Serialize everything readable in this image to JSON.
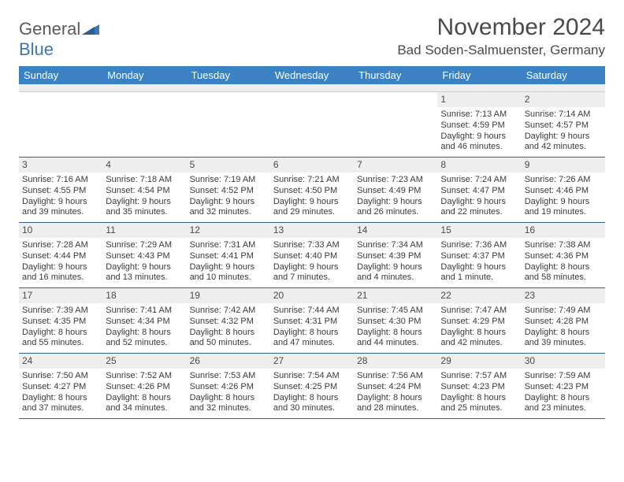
{
  "logo": {
    "general": "General",
    "blue": "Blue"
  },
  "title": "November 2024",
  "location": "Bad Soden-Salmuenster, Germany",
  "colors": {
    "header_bg": "#3a82c4",
    "header_text": "#ffffff",
    "daynum_bg": "#eeeeee",
    "week_divider": "#2f5f8f",
    "logo_blue": "#3a78b5",
    "text": "#3a3a3a"
  },
  "dow": [
    "Sunday",
    "Monday",
    "Tuesday",
    "Wednesday",
    "Thursday",
    "Friday",
    "Saturday"
  ],
  "weeks": [
    [
      null,
      null,
      null,
      null,
      null,
      {
        "n": "1",
        "sr": "Sunrise: 7:13 AM",
        "ss": "Sunset: 4:59 PM",
        "d1": "Daylight: 9 hours",
        "d2": "and 46 minutes."
      },
      {
        "n": "2",
        "sr": "Sunrise: 7:14 AM",
        "ss": "Sunset: 4:57 PM",
        "d1": "Daylight: 9 hours",
        "d2": "and 42 minutes."
      }
    ],
    [
      {
        "n": "3",
        "sr": "Sunrise: 7:16 AM",
        "ss": "Sunset: 4:55 PM",
        "d1": "Daylight: 9 hours",
        "d2": "and 39 minutes."
      },
      {
        "n": "4",
        "sr": "Sunrise: 7:18 AM",
        "ss": "Sunset: 4:54 PM",
        "d1": "Daylight: 9 hours",
        "d2": "and 35 minutes."
      },
      {
        "n": "5",
        "sr": "Sunrise: 7:19 AM",
        "ss": "Sunset: 4:52 PM",
        "d1": "Daylight: 9 hours",
        "d2": "and 32 minutes."
      },
      {
        "n": "6",
        "sr": "Sunrise: 7:21 AM",
        "ss": "Sunset: 4:50 PM",
        "d1": "Daylight: 9 hours",
        "d2": "and 29 minutes."
      },
      {
        "n": "7",
        "sr": "Sunrise: 7:23 AM",
        "ss": "Sunset: 4:49 PM",
        "d1": "Daylight: 9 hours",
        "d2": "and 26 minutes."
      },
      {
        "n": "8",
        "sr": "Sunrise: 7:24 AM",
        "ss": "Sunset: 4:47 PM",
        "d1": "Daylight: 9 hours",
        "d2": "and 22 minutes."
      },
      {
        "n": "9",
        "sr": "Sunrise: 7:26 AM",
        "ss": "Sunset: 4:46 PM",
        "d1": "Daylight: 9 hours",
        "d2": "and 19 minutes."
      }
    ],
    [
      {
        "n": "10",
        "sr": "Sunrise: 7:28 AM",
        "ss": "Sunset: 4:44 PM",
        "d1": "Daylight: 9 hours",
        "d2": "and 16 minutes."
      },
      {
        "n": "11",
        "sr": "Sunrise: 7:29 AM",
        "ss": "Sunset: 4:43 PM",
        "d1": "Daylight: 9 hours",
        "d2": "and 13 minutes."
      },
      {
        "n": "12",
        "sr": "Sunrise: 7:31 AM",
        "ss": "Sunset: 4:41 PM",
        "d1": "Daylight: 9 hours",
        "d2": "and 10 minutes."
      },
      {
        "n": "13",
        "sr": "Sunrise: 7:33 AM",
        "ss": "Sunset: 4:40 PM",
        "d1": "Daylight: 9 hours",
        "d2": "and 7 minutes."
      },
      {
        "n": "14",
        "sr": "Sunrise: 7:34 AM",
        "ss": "Sunset: 4:39 PM",
        "d1": "Daylight: 9 hours",
        "d2": "and 4 minutes."
      },
      {
        "n": "15",
        "sr": "Sunrise: 7:36 AM",
        "ss": "Sunset: 4:37 PM",
        "d1": "Daylight: 9 hours",
        "d2": "and 1 minute."
      },
      {
        "n": "16",
        "sr": "Sunrise: 7:38 AM",
        "ss": "Sunset: 4:36 PM",
        "d1": "Daylight: 8 hours",
        "d2": "and 58 minutes."
      }
    ],
    [
      {
        "n": "17",
        "sr": "Sunrise: 7:39 AM",
        "ss": "Sunset: 4:35 PM",
        "d1": "Daylight: 8 hours",
        "d2": "and 55 minutes."
      },
      {
        "n": "18",
        "sr": "Sunrise: 7:41 AM",
        "ss": "Sunset: 4:34 PM",
        "d1": "Daylight: 8 hours",
        "d2": "and 52 minutes."
      },
      {
        "n": "19",
        "sr": "Sunrise: 7:42 AM",
        "ss": "Sunset: 4:32 PM",
        "d1": "Daylight: 8 hours",
        "d2": "and 50 minutes."
      },
      {
        "n": "20",
        "sr": "Sunrise: 7:44 AM",
        "ss": "Sunset: 4:31 PM",
        "d1": "Daylight: 8 hours",
        "d2": "and 47 minutes."
      },
      {
        "n": "21",
        "sr": "Sunrise: 7:45 AM",
        "ss": "Sunset: 4:30 PM",
        "d1": "Daylight: 8 hours",
        "d2": "and 44 minutes."
      },
      {
        "n": "22",
        "sr": "Sunrise: 7:47 AM",
        "ss": "Sunset: 4:29 PM",
        "d1": "Daylight: 8 hours",
        "d2": "and 42 minutes."
      },
      {
        "n": "23",
        "sr": "Sunrise: 7:49 AM",
        "ss": "Sunset: 4:28 PM",
        "d1": "Daylight: 8 hours",
        "d2": "and 39 minutes."
      }
    ],
    [
      {
        "n": "24",
        "sr": "Sunrise: 7:50 AM",
        "ss": "Sunset: 4:27 PM",
        "d1": "Daylight: 8 hours",
        "d2": "and 37 minutes."
      },
      {
        "n": "25",
        "sr": "Sunrise: 7:52 AM",
        "ss": "Sunset: 4:26 PM",
        "d1": "Daylight: 8 hours",
        "d2": "and 34 minutes."
      },
      {
        "n": "26",
        "sr": "Sunrise: 7:53 AM",
        "ss": "Sunset: 4:26 PM",
        "d1": "Daylight: 8 hours",
        "d2": "and 32 minutes."
      },
      {
        "n": "27",
        "sr": "Sunrise: 7:54 AM",
        "ss": "Sunset: 4:25 PM",
        "d1": "Daylight: 8 hours",
        "d2": "and 30 minutes."
      },
      {
        "n": "28",
        "sr": "Sunrise: 7:56 AM",
        "ss": "Sunset: 4:24 PM",
        "d1": "Daylight: 8 hours",
        "d2": "and 28 minutes."
      },
      {
        "n": "29",
        "sr": "Sunrise: 7:57 AM",
        "ss": "Sunset: 4:23 PM",
        "d1": "Daylight: 8 hours",
        "d2": "and 25 minutes."
      },
      {
        "n": "30",
        "sr": "Sunrise: 7:59 AM",
        "ss": "Sunset: 4:23 PM",
        "d1": "Daylight: 8 hours",
        "d2": "and 23 minutes."
      }
    ]
  ]
}
